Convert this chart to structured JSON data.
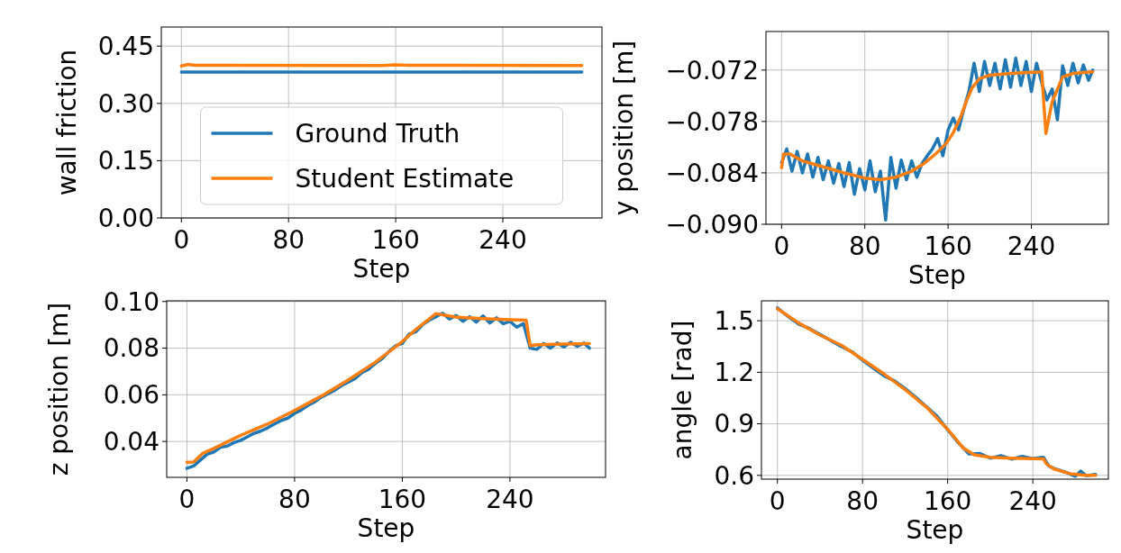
{
  "chart_data": [
    {
      "type": "line",
      "xlabel": "Step",
      "ylabel": "wall friction",
      "xlim": [
        -15,
        314
      ],
      "ylim": [
        0,
        0.5
      ],
      "xticks": [
        0,
        80,
        160,
        240
      ],
      "yticks": [
        {
          "value": 0,
          "label": "0.00"
        },
        0.15,
        {
          "value": 0.3,
          "label": "0.30"
        },
        0.45
      ],
      "grid": true,
      "legend": "bottom",
      "series": [
        {
          "name": "Ground Truth",
          "color": "#1f77b4",
          "x": [
            0,
            299
          ],
          "values": [
            0.382,
            0.382
          ]
        },
        {
          "name": "Student Estimate",
          "color": "#ff7f0e",
          "x": [
            0,
            5,
            10,
            150,
            160,
            170,
            299
          ],
          "values": [
            0.398,
            0.402,
            0.4,
            0.399,
            0.401,
            0.4,
            0.399
          ]
        }
      ]
    },
    {
      "type": "line",
      "xlabel": "Step",
      "ylabel": "y position [m]",
      "xlim": [
        -15,
        314
      ],
      "ylim": [
        -0.09,
        -0.0675
      ],
      "xticks": [
        0,
        80,
        160,
        240
      ],
      "yticks": [
        {
          "value": -0.09,
          "label": "−0.090"
        },
        {
          "value": -0.084,
          "label": "−0.084"
        },
        {
          "value": -0.078,
          "label": "−0.078"
        },
        {
          "value": -0.072,
          "label": "−0.072"
        }
      ],
      "grid": true,
      "series": [
        {
          "color": "#1f77b4",
          "x": [
            0,
            5,
            10,
            15,
            20,
            25,
            30,
            35,
            40,
            45,
            50,
            55,
            60,
            65,
            70,
            75,
            80,
            85,
            90,
            95,
            100,
            105,
            110,
            115,
            120,
            125,
            130,
            135,
            140,
            145,
            150,
            155,
            160,
            165,
            170,
            175,
            180,
            185,
            190,
            195,
            200,
            205,
            210,
            215,
            220,
            225,
            230,
            235,
            240,
            245,
            250,
            255,
            260,
            265,
            270,
            275,
            280,
            285,
            290,
            295,
            299
          ],
          "values": [
            -0.0828,
            -0.0812,
            -0.0838,
            -0.0815,
            -0.084,
            -0.0818,
            -0.0845,
            -0.0822,
            -0.0848,
            -0.0826,
            -0.0852,
            -0.0829,
            -0.0856,
            -0.0828,
            -0.0865,
            -0.0835,
            -0.086,
            -0.0826,
            -0.0862,
            -0.0838,
            -0.0895,
            -0.0822,
            -0.0858,
            -0.0825,
            -0.0848,
            -0.0826,
            -0.0845,
            -0.0829,
            -0.082,
            -0.0812,
            -0.08,
            -0.082,
            -0.079,
            -0.0776,
            -0.079,
            -0.0766,
            -0.0745,
            -0.0712,
            -0.0745,
            -0.071,
            -0.0738,
            -0.0712,
            -0.0742,
            -0.0708,
            -0.074,
            -0.0706,
            -0.0738,
            -0.071,
            -0.0745,
            -0.0712,
            -0.0735,
            -0.0755,
            -0.0742,
            -0.0778,
            -0.0715,
            -0.0738,
            -0.0712,
            -0.0735,
            -0.0714,
            -0.0732,
            -0.072
          ]
        },
        {
          "color": "#ff7f0e",
          "x": [
            0,
            2,
            8,
            20,
            40,
            60,
            80,
            95,
            110,
            125,
            137,
            148,
            158,
            165,
            172,
            178,
            183,
            190,
            200,
            220,
            250,
            252,
            254,
            257,
            260,
            270,
            280,
            299
          ],
          "values": [
            -0.0834,
            -0.0818,
            -0.0818,
            -0.0826,
            -0.0833,
            -0.084,
            -0.0846,
            -0.0848,
            -0.0845,
            -0.0838,
            -0.0829,
            -0.0818,
            -0.0806,
            -0.0793,
            -0.0775,
            -0.0755,
            -0.0741,
            -0.073,
            -0.0726,
            -0.0724,
            -0.0722,
            -0.076,
            -0.0794,
            -0.0775,
            -0.0757,
            -0.0728,
            -0.0724,
            -0.0722
          ]
        }
      ]
    },
    {
      "type": "line",
      "xlabel": "Step",
      "ylabel": "z position [m]",
      "xlim": [
        -15,
        311
      ],
      "ylim": [
        0.0246,
        0.1003
      ],
      "xticks": [
        0,
        80,
        160,
        240
      ],
      "yticks": [
        0.04,
        0.06,
        0.08,
        {
          "value": 0.1,
          "label": "0.10"
        }
      ],
      "grid": true,
      "series": [
        {
          "color": "#1f77b4",
          "x": [
            0,
            5,
            10,
            15,
            20,
            25,
            30,
            35,
            40,
            45,
            50,
            55,
            60,
            65,
            70,
            75,
            80,
            85,
            90,
            95,
            100,
            105,
            110,
            115,
            120,
            125,
            130,
            135,
            140,
            145,
            150,
            155,
            160,
            165,
            170,
            175,
            180,
            185,
            190,
            195,
            200,
            205,
            210,
            215,
            220,
            225,
            230,
            235,
            240,
            245,
            250,
            255,
            260,
            265,
            270,
            275,
            280,
            285,
            290,
            295,
            299
          ],
          "values": [
            0.0285,
            0.0295,
            0.032,
            0.0345,
            0.0355,
            0.0375,
            0.038,
            0.0395,
            0.0405,
            0.042,
            0.0435,
            0.0445,
            0.0458,
            0.0475,
            0.049,
            0.05,
            0.052,
            0.0535,
            0.0555,
            0.057,
            0.059,
            0.0605,
            0.062,
            0.064,
            0.0655,
            0.067,
            0.0695,
            0.071,
            0.0735,
            0.0755,
            0.0785,
            0.081,
            0.082,
            0.086,
            0.087,
            0.09,
            0.092,
            0.0935,
            0.095,
            0.0925,
            0.094,
            0.0915,
            0.0935,
            0.0912,
            0.0938,
            0.0908,
            0.093,
            0.0905,
            0.0915,
            0.089,
            0.0905,
            0.08,
            0.0795,
            0.082,
            0.08,
            0.0822,
            0.0805,
            0.0825,
            0.0808,
            0.0822,
            0.08
          ]
        },
        {
          "color": "#ff7f0e",
          "x": [
            0,
            5,
            12,
            20,
            40,
            60,
            80,
            100,
            120,
            140,
            160,
            170,
            180,
            185,
            190,
            200,
            220,
            240,
            252,
            255,
            260,
            280,
            299
          ],
          "values": [
            0.0311,
            0.0312,
            0.035,
            0.037,
            0.0426,
            0.0475,
            0.0533,
            0.0595,
            0.0664,
            0.074,
            0.0828,
            0.088,
            0.0925,
            0.0948,
            0.0943,
            0.0933,
            0.0927,
            0.0922,
            0.092,
            0.0811,
            0.0815,
            0.0818,
            0.082
          ]
        }
      ]
    },
    {
      "type": "line",
      "xlabel": "Step",
      "ylabel": "angle [rad]",
      "xlim": [
        -15,
        311
      ],
      "ylim": [
        0.578,
        1.616
      ],
      "xticks": [
        0,
        80,
        160,
        240
      ],
      "yticks": [
        0.6,
        0.9,
        1.2,
        1.5
      ],
      "grid": true,
      "series": [
        {
          "color": "#1f77b4",
          "x": [
            0,
            10,
            20,
            30,
            40,
            50,
            60,
            70,
            80,
            90,
            100,
            110,
            120,
            130,
            140,
            150,
            160,
            170,
            180,
            190,
            200,
            210,
            220,
            230,
            240,
            250,
            255,
            260,
            270,
            280,
            285,
            290,
            299
          ],
          "values": [
            1.575,
            1.525,
            1.48,
            1.455,
            1.42,
            1.385,
            1.35,
            1.32,
            1.27,
            1.225,
            1.18,
            1.15,
            1.105,
            1.055,
            1,
            0.945,
            0.865,
            0.79,
            0.725,
            0.728,
            0.7,
            0.715,
            0.695,
            0.71,
            0.698,
            0.705,
            0.655,
            0.64,
            0.62,
            0.595,
            0.625,
            0.598,
            0.605
          ]
        },
        {
          "color": "#ff7f0e",
          "x": [
            0,
            20,
            40,
            60,
            80,
            100,
            120,
            140,
            160,
            175,
            185,
            200,
            220,
            250,
            253,
            260,
            275,
            290,
            299
          ],
          "values": [
            1.57,
            1.487,
            1.417,
            1.358,
            1.275,
            1.191,
            1.099,
            0.997,
            0.868,
            0.757,
            0.72,
            0.705,
            0.7,
            0.696,
            0.665,
            0.637,
            0.61,
            0.6,
            0.6
          ]
        }
      ]
    }
  ]
}
